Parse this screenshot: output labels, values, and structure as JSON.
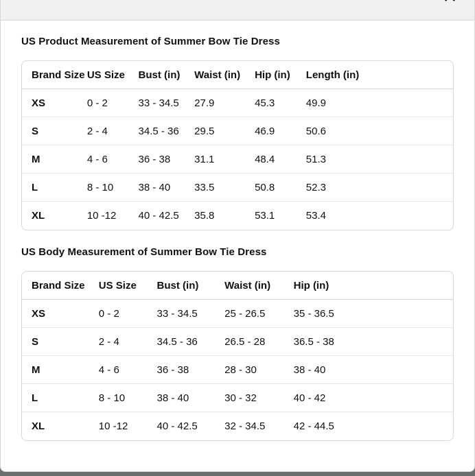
{
  "modal": {
    "close_icon": "close-x"
  },
  "tables": [
    {
      "title": "US Product Measurement of Summer Bow Tie Dress",
      "headers": [
        "Brand Size",
        "US Size",
        "Bust (in)",
        "Waist (in)",
        "Hip (in)",
        "Length (in)"
      ],
      "rows": [
        [
          "XS",
          "0 - 2",
          "33 - 34.5",
          "27.9",
          "45.3",
          "49.9"
        ],
        [
          "S",
          "2 - 4",
          "34.5 - 36",
          "29.5",
          "46.9",
          "50.6"
        ],
        [
          "M",
          "4 - 6",
          "36 - 38",
          "31.1",
          "48.4",
          "51.3"
        ],
        [
          "L",
          "8 - 10",
          "38 - 40",
          "33.5",
          "50.8",
          "52.3"
        ],
        [
          "XL",
          "10 -12",
          "40 - 42.5",
          "35.8",
          "53.1",
          "53.4"
        ]
      ]
    },
    {
      "title": "US Body Measurement of Summer Bow Tie Dress",
      "headers": [
        "Brand Size",
        "US Size",
        "Bust (in)",
        "Waist (in)",
        "Hip (in)"
      ],
      "rows": [
        [
          "XS",
          "0 - 2",
          "33 - 34.5",
          "25 - 26.5",
          "35 - 36.5"
        ],
        [
          "S",
          "2 - 4",
          "34.5 - 36",
          "26.5 - 28",
          "36.5 - 38"
        ],
        [
          "M",
          "4 - 6",
          "36 - 38",
          "28 - 30",
          "38 - 40"
        ],
        [
          "L",
          "8 - 10",
          "38 - 40",
          "30 - 32",
          "40 - 42"
        ],
        [
          "XL",
          "10 -12",
          "40 - 42.5",
          "32 - 34.5",
          "42 - 44.5"
        ]
      ]
    }
  ],
  "colors": {
    "text": "#0f1111",
    "surface": "#ffffff",
    "header_strip": "#eff1f1",
    "table_border": "#d5d9d9",
    "row_divider": "#e7e7e7",
    "overlay": "#6c7070"
  }
}
